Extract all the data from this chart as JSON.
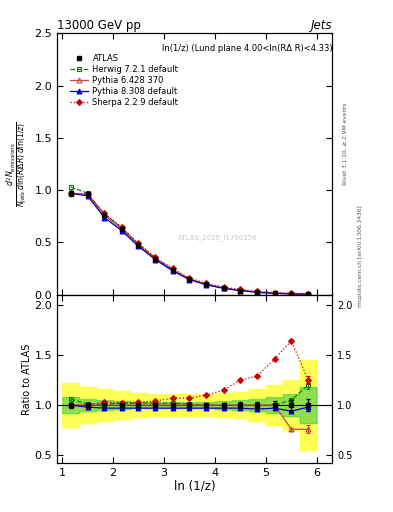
{
  "title": "13000 GeV pp",
  "title_right": "Jets",
  "annotation": "ln(1/z) (Lund plane 4.00<ln(RΔ R)<4.33)",
  "watermark": "ATLAS_2020_I1790256",
  "ylabel_ratio": "Ratio to ATLAS",
  "xlabel": "ln (1/z)",
  "rivet_label": "Rivet 3.1.10, ≥ 2.9M events",
  "arxiv_label": "mcplots.cern.ch [arXiv:1306.3436]",
  "x_data": [
    1.17,
    1.5,
    1.83,
    2.17,
    2.5,
    2.83,
    3.17,
    3.5,
    3.83,
    4.17,
    4.5,
    4.83,
    5.17,
    5.5,
    5.83
  ],
  "atlas_y": [
    0.97,
    0.96,
    0.76,
    0.63,
    0.475,
    0.345,
    0.235,
    0.148,
    0.098,
    0.063,
    0.04,
    0.024,
    0.014,
    0.009,
    0.005
  ],
  "atlas_yerr": [
    0.025,
    0.018,
    0.013,
    0.01,
    0.008,
    0.006,
    0.005,
    0.003,
    0.002,
    0.0015,
    0.0012,
    0.0008,
    0.0006,
    0.0005,
    0.0003
  ],
  "herwig_y": [
    1.03,
    0.97,
    0.77,
    0.64,
    0.483,
    0.352,
    0.24,
    0.15,
    0.098,
    0.063,
    0.04,
    0.024,
    0.014,
    0.0095,
    0.006
  ],
  "pythia6_y": [
    0.97,
    0.96,
    0.76,
    0.63,
    0.475,
    0.345,
    0.235,
    0.148,
    0.098,
    0.063,
    0.04,
    0.024,
    0.014,
    0.0068,
    0.0038
  ],
  "pythia8_y": [
    0.97,
    0.945,
    0.738,
    0.612,
    0.462,
    0.336,
    0.228,
    0.144,
    0.095,
    0.061,
    0.039,
    0.023,
    0.0136,
    0.0085,
    0.0049
  ],
  "sherpa_y": [
    0.97,
    0.96,
    0.78,
    0.645,
    0.49,
    0.358,
    0.251,
    0.159,
    0.108,
    0.0725,
    0.05,
    0.031,
    0.0205,
    0.0148,
    0.0085
  ],
  "herwig_ratio": [
    1.06,
    1.01,
    1.01,
    1.02,
    1.02,
    1.02,
    1.02,
    1.01,
    1.0,
    1.0,
    1.0,
    1.0,
    1.0,
    1.05,
    1.2
  ],
  "pythia6_ratio": [
    1.0,
    1.0,
    1.0,
    1.0,
    1.0,
    1.0,
    1.0,
    1.0,
    1.0,
    1.0,
    1.0,
    1.0,
    1.0,
    0.76,
    0.76
  ],
  "pythia8_ratio": [
    1.0,
    0.98,
    0.97,
    0.97,
    0.97,
    0.97,
    0.97,
    0.97,
    0.97,
    0.97,
    0.97,
    0.96,
    0.97,
    0.94,
    0.98
  ],
  "sherpa_ratio": [
    1.0,
    1.0,
    1.03,
    1.02,
    1.03,
    1.04,
    1.07,
    1.07,
    1.1,
    1.15,
    1.25,
    1.29,
    1.46,
    1.64,
    1.25
  ],
  "herwig_ratio_err": [
    0.02,
    0.015,
    0.012,
    0.01,
    0.008,
    0.007,
    0.006,
    0.005,
    0.004,
    0.004,
    0.004,
    0.005,
    0.006,
    0.01,
    0.04
  ],
  "pythia6_ratio_err": [
    0.02,
    0.015,
    0.012,
    0.01,
    0.008,
    0.007,
    0.006,
    0.005,
    0.004,
    0.004,
    0.004,
    0.005,
    0.006,
    0.015,
    0.04
  ],
  "pythia8_ratio_err": [
    0.02,
    0.015,
    0.012,
    0.01,
    0.008,
    0.007,
    0.006,
    0.005,
    0.004,
    0.004,
    0.004,
    0.005,
    0.006,
    0.01,
    0.04
  ],
  "sherpa_ratio_err": [
    0.02,
    0.015,
    0.012,
    0.01,
    0.008,
    0.007,
    0.006,
    0.005,
    0.004,
    0.004,
    0.004,
    0.005,
    0.006,
    0.015,
    0.04
  ],
  "band_yellow_lo": [
    0.78,
    0.82,
    0.84,
    0.86,
    0.88,
    0.89,
    0.89,
    0.89,
    0.89,
    0.88,
    0.87,
    0.84,
    0.8,
    0.75,
    0.55
  ],
  "band_yellow_hi": [
    1.22,
    1.18,
    1.16,
    1.14,
    1.12,
    1.11,
    1.11,
    1.11,
    1.11,
    1.12,
    1.13,
    1.16,
    1.2,
    1.25,
    1.45
  ],
  "band_green_lo": [
    0.92,
    0.94,
    0.95,
    0.96,
    0.97,
    0.97,
    0.97,
    0.97,
    0.97,
    0.96,
    0.95,
    0.94,
    0.92,
    0.89,
    0.82
  ],
  "band_green_hi": [
    1.08,
    1.06,
    1.05,
    1.04,
    1.03,
    1.03,
    1.03,
    1.03,
    1.03,
    1.04,
    1.05,
    1.06,
    1.08,
    1.11,
    1.18
  ],
  "atlas_color": "#000000",
  "herwig_color": "#008800",
  "pythia6_color": "#cc4444",
  "pythia8_color": "#0000cc",
  "sherpa_color": "#cc0000",
  "yellow_color": "#ffff44",
  "green_color": "#44cc44",
  "xlim": [
    0.9,
    6.3
  ],
  "ylim_main": [
    0.0,
    2.5
  ],
  "ylim_ratio": [
    0.42,
    2.1
  ],
  "yticks_main": [
    0.0,
    0.5,
    1.0,
    1.5,
    2.0,
    2.5
  ],
  "yticks_ratio": [
    0.5,
    1.0,
    1.5,
    2.0
  ],
  "xticks": [
    1,
    2,
    3,
    4,
    5,
    6
  ]
}
